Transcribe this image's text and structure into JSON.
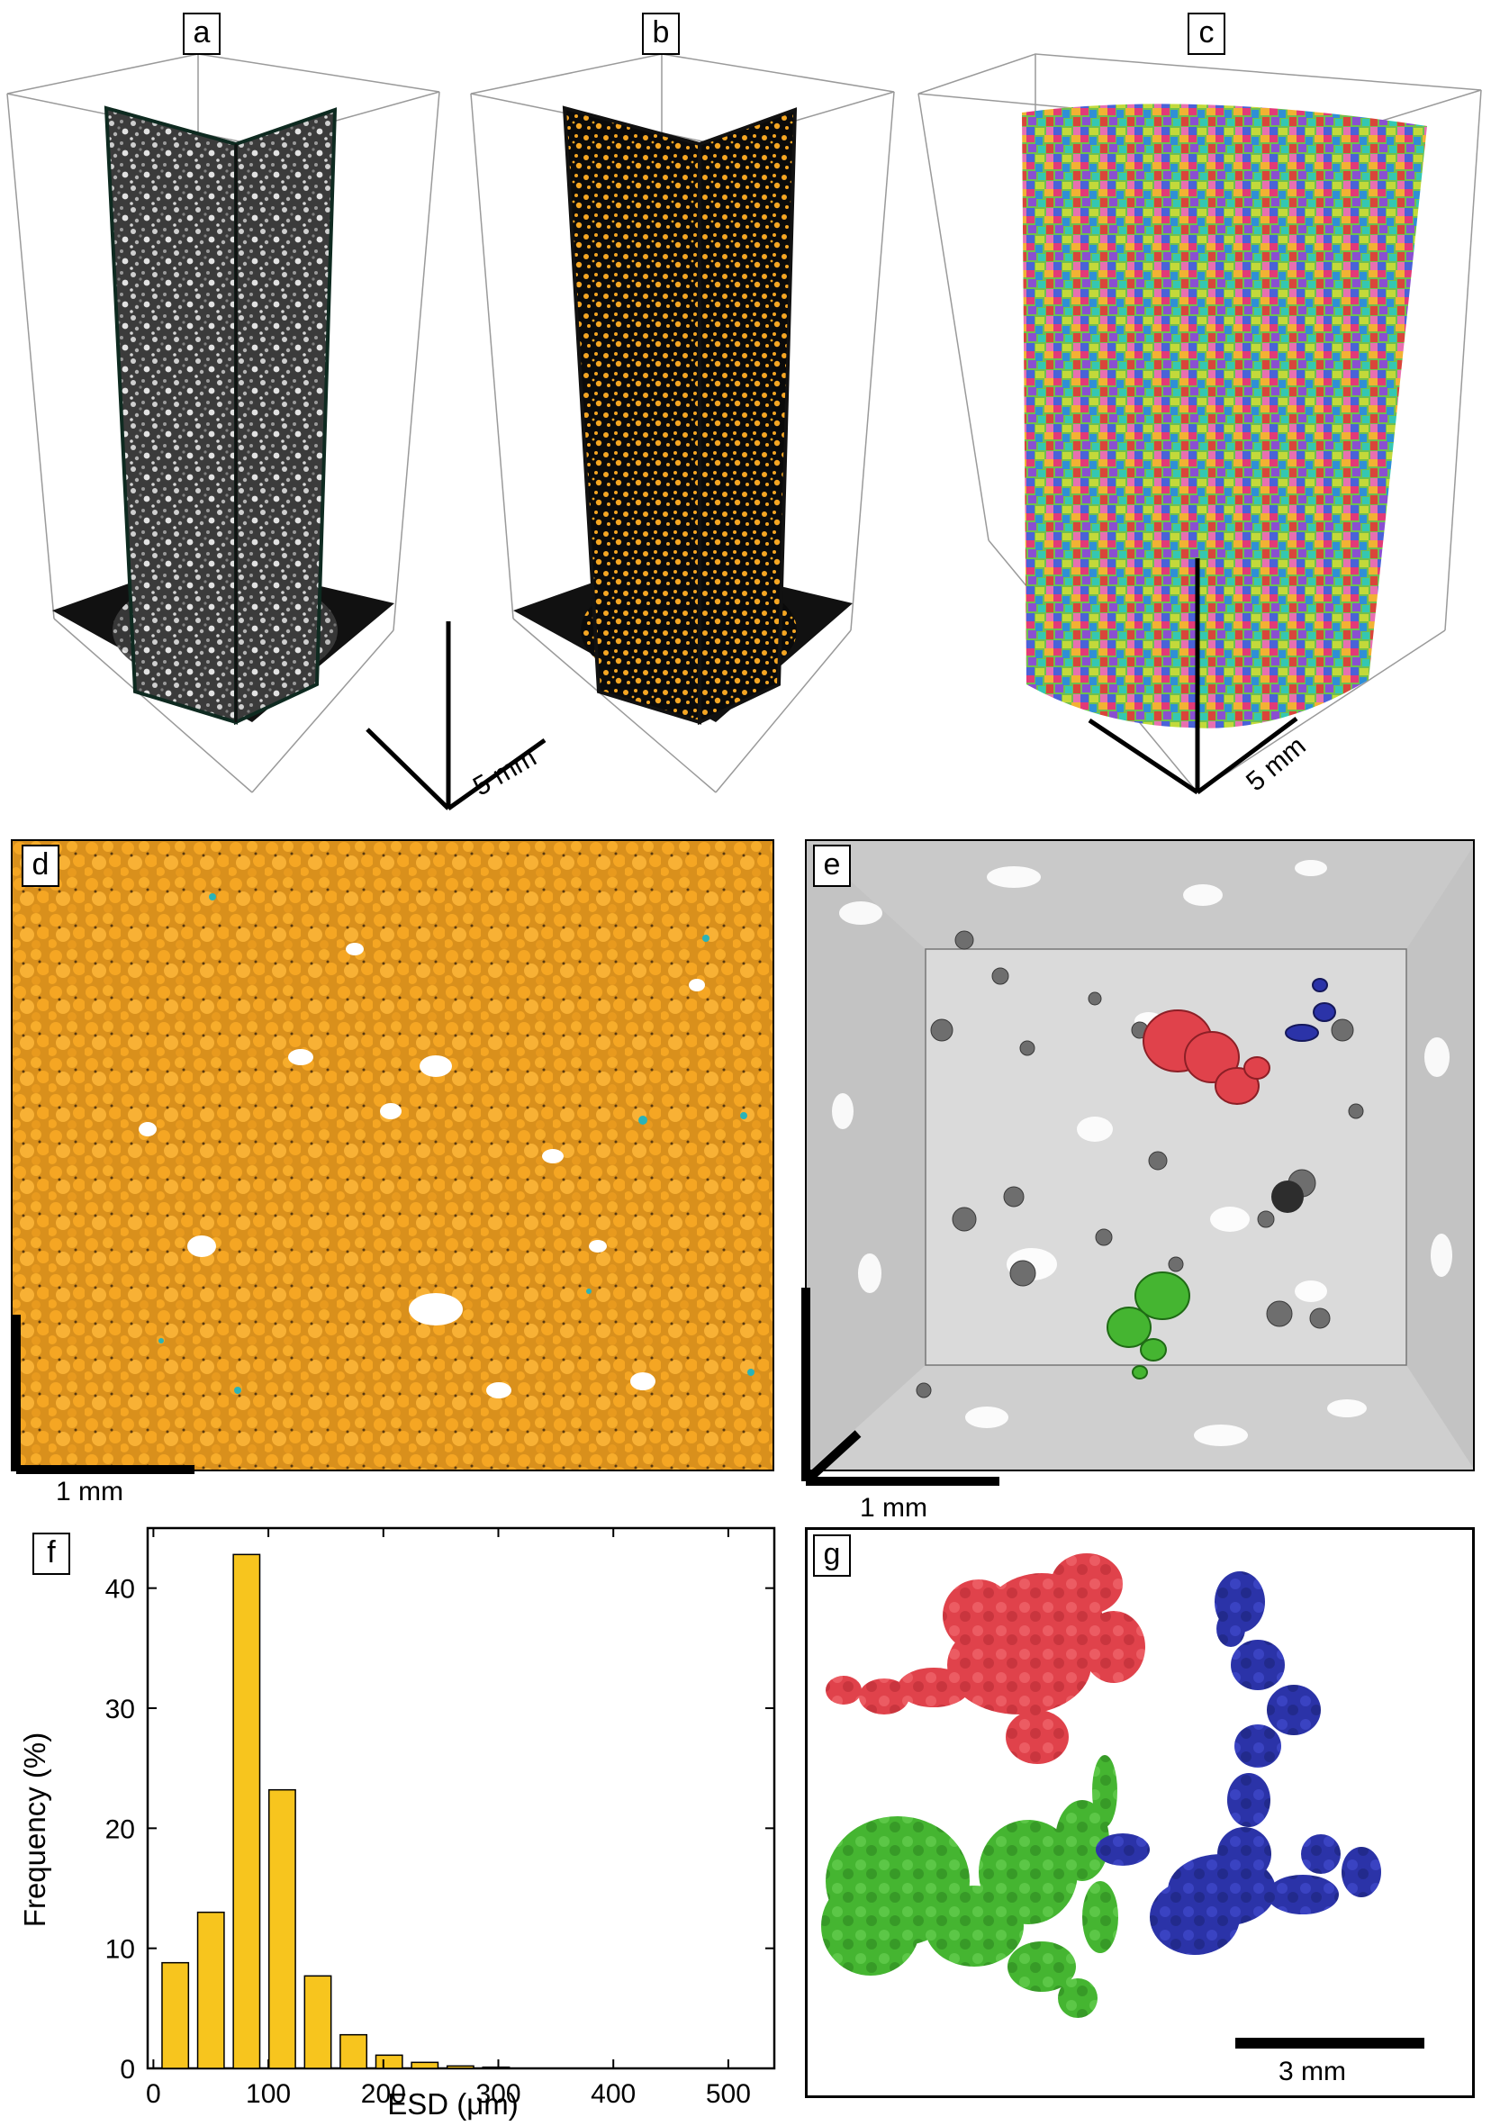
{
  "panels": {
    "a": {
      "label": "a"
    },
    "b": {
      "label": "b"
    },
    "c": {
      "label": "c"
    },
    "d": {
      "label": "d"
    },
    "e": {
      "label": "e"
    },
    "f": {
      "label": "f"
    },
    "g": {
      "label": "g"
    }
  },
  "scale_bars": {
    "ab": "5 mm",
    "c": "5 mm",
    "d": "1 mm",
    "e": "1 mm",
    "g": "3 mm"
  },
  "colors": {
    "particle_orange": "#f5a623",
    "pore_cyan": "#2ab3b8",
    "bar_yellow": "#f7c51e",
    "cluster_red": "#e0424b",
    "cluster_green": "#45b531",
    "cluster_blue": "#2b33a8"
  },
  "chart_data": {
    "type": "bar",
    "xlabel": "ESD (μm)",
    "ylabel": "Frequency (%)",
    "xlim": [
      -5,
      540
    ],
    "ylim": [
      0,
      45
    ],
    "x_ticks": [
      0,
      100,
      200,
      300,
      400,
      500
    ],
    "y_ticks": [
      0,
      10,
      20,
      30,
      40
    ],
    "bin_width": 31,
    "bin_centers": [
      19,
      50,
      81,
      112,
      143,
      174,
      205,
      236,
      267,
      298
    ],
    "values": [
      8.8,
      13.0,
      42.8,
      23.2,
      7.7,
      2.8,
      1.1,
      0.5,
      0.2,
      0.1
    ],
    "color": "#f7c51e"
  }
}
